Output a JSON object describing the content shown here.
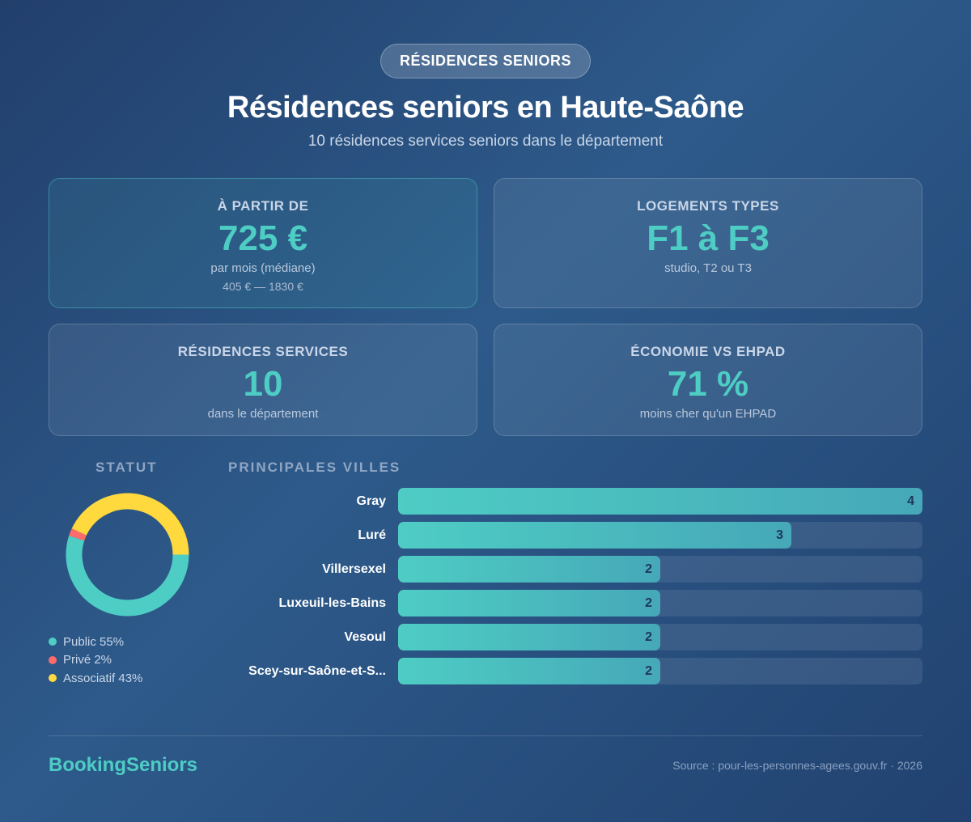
{
  "header": {
    "badge": "RÉSIDENCES SENIORS",
    "title": "Résidences seniors en Haute-Saône",
    "subtitle": "10 résidences services seniors dans le département"
  },
  "cards": {
    "price": {
      "label": "À PARTIR DE",
      "value": "725 €",
      "sub": "par mois (médiane)",
      "range": "405 € — 1830 €"
    },
    "housing": {
      "label": "LOGEMENTS TYPES",
      "value": "F1 à F3",
      "sub": "studio, T2 ou T3"
    },
    "count": {
      "label": "RÉSIDENCES SERVICES",
      "value": "10",
      "sub": "dans le département"
    },
    "savings": {
      "label": "ÉCONOMIE VS EHPAD",
      "value": "71 %",
      "sub": "moins cher qu'un EHPAD"
    }
  },
  "chart_data": [
    {
      "type": "pie",
      "title": "STATUT",
      "slices": [
        {
          "name": "Public",
          "value": 55,
          "label": "Public 55%",
          "color": "#4ecdc4"
        },
        {
          "name": "Privé",
          "value": 2,
          "label": "Privé 2%",
          "color": "#ff6b6b"
        },
        {
          "name": "Associatif",
          "value": 43,
          "label": "Associatif 43%",
          "color": "#ffd93d"
        }
      ]
    },
    {
      "type": "bar",
      "orientation": "horizontal",
      "title": "PRINCIPALES VILLES",
      "categories": [
        "Gray",
        "Luré",
        "Villersexel",
        "Luxeuil-les-Bains",
        "Vesoul",
        "Scey-sur-Saône-et-S..."
      ],
      "values": [
        4,
        3,
        2,
        2,
        2,
        2
      ],
      "xlim": [
        0,
        4
      ]
    }
  ],
  "footer": {
    "brand": "BookingSeniors",
    "source": "Source : pour-les-personnes-agees.gouv.fr · 2026"
  }
}
